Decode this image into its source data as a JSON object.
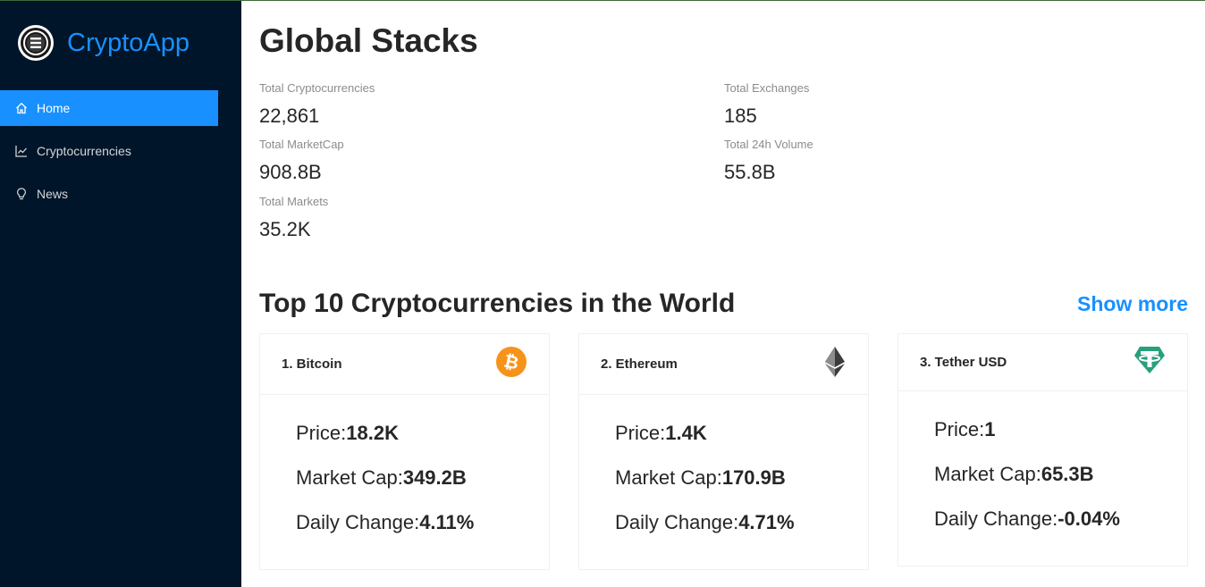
{
  "app": {
    "title": "CryptoApp"
  },
  "sidebar": {
    "items": [
      {
        "label": "Home",
        "icon": "home-icon",
        "active": true
      },
      {
        "label": "Cryptocurrencies",
        "icon": "line-chart-icon",
        "active": false
      },
      {
        "label": "News",
        "icon": "bulb-icon",
        "active": false
      }
    ]
  },
  "global": {
    "title": "Global Stacks",
    "stats": {
      "total_cryptocurrencies": {
        "label": "Total Cryptocurrencies",
        "value": "22,861"
      },
      "total_exchanges": {
        "label": "Total Exchanges",
        "value": "185"
      },
      "total_marketcap": {
        "label": "Total MarketCap",
        "value": "908.8B"
      },
      "total_24h_volume": {
        "label": "Total 24h Volume",
        "value": "55.8B"
      },
      "total_markets": {
        "label": "Total Markets",
        "value": "35.2K"
      }
    }
  },
  "top": {
    "title": "Top 10 Cryptocurrencies in the World",
    "show_more": "Show more",
    "labels": {
      "price": "Price:",
      "market_cap": "Market Cap:",
      "daily_change": "Daily Change:"
    },
    "cards": [
      {
        "title": "1. Bitcoin",
        "icon": "bitcoin-icon",
        "price": "18.2K",
        "market_cap": "349.2B",
        "daily_change": "4.11%"
      },
      {
        "title": "2. Ethereum",
        "icon": "ethereum-icon",
        "price": "1.4K",
        "market_cap": "170.9B",
        "daily_change": "4.71%"
      },
      {
        "title": "3. Tether USD",
        "icon": "tether-icon",
        "price": "1",
        "market_cap": "65.3B",
        "daily_change": "-0.04%"
      }
    ]
  },
  "colors": {
    "sidebar_bg": "#001529",
    "accent": "#1890ff",
    "bitcoin": "#f7931a",
    "tether": "#26a17b"
  }
}
